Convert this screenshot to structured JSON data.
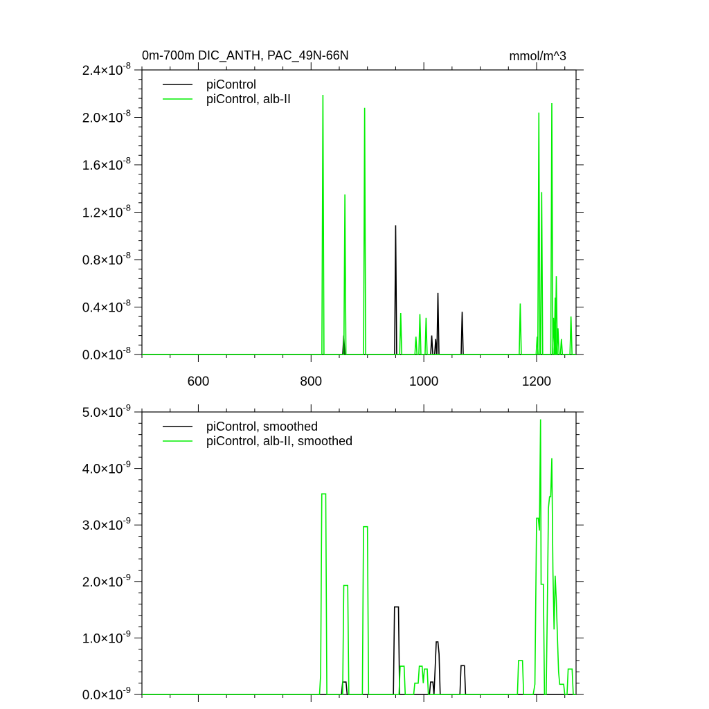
{
  "colors": {
    "control": "#000000",
    "alb": "#00ee00"
  },
  "chart_data": [
    {
      "type": "line",
      "title": "0m-700m DIC_ANTH, PAC_49N-66N",
      "units": "mmol/m^3",
      "xlim": [
        500,
        1270
      ],
      "ylim": [
        0,
        2.4e-08
      ],
      "x_ticks": [
        "600",
        "800",
        "1000",
        "1200"
      ],
      "y_ticks": [
        {
          "mant": "0.0",
          "exp": "-8"
        },
        {
          "mant": "0.4",
          "exp": "-8"
        },
        {
          "mant": "0.8",
          "exp": "-8"
        },
        {
          "mant": "1.2",
          "exp": "-8"
        },
        {
          "mant": "1.6",
          "exp": "-8"
        },
        {
          "mant": "2.0",
          "exp": "-8"
        },
        {
          "mant": "2.4",
          "exp": "-8"
        }
      ],
      "series": [
        {
          "name": "piControl",
          "color": "#000000",
          "style": "spikes",
          "points": [
            [
              858,
              1.6e-09
            ],
            [
              950,
              1.09e-08
            ],
            [
              1014,
              1.6e-09
            ],
            [
              1021,
              1.3e-09
            ],
            [
              1025,
              5.2e-09
            ],
            [
              1068,
              3.6e-09
            ]
          ]
        },
        {
          "name": "piControl, alb-II",
          "color": "#00ee00",
          "style": "spikes",
          "points": [
            [
              821,
              2.19e-08
            ],
            [
              860,
              1.35e-08
            ],
            [
              895,
              2.08e-08
            ],
            [
              959,
              3.5e-09
            ],
            [
              986,
              1.5e-09
            ],
            [
              993,
              3.4e-09
            ],
            [
              1004,
              3.1e-09
            ],
            [
              1171,
              4.3e-09
            ],
            [
              1201,
              1.5e-09
            ],
            [
              1204,
              2.04e-08
            ],
            [
              1209,
              1.37e-08
            ],
            [
              1227,
              2.12e-08
            ],
            [
              1230,
              3.1e-09
            ],
            [
              1233,
              4.8e-09
            ],
            [
              1235,
              6.6e-09
            ],
            [
              1238,
              2.2e-09
            ],
            [
              1244,
              1.3e-09
            ],
            [
              1261,
              3.2e-09
            ]
          ]
        }
      ]
    },
    {
      "type": "line",
      "title": "",
      "xlim": [
        500,
        1270
      ],
      "ylim": [
        0,
        5e-09
      ],
      "x_ticks": [],
      "y_ticks": [
        {
          "mant": "0.0",
          "exp": "-9"
        },
        {
          "mant": "1.0",
          "exp": "-9"
        },
        {
          "mant": "2.0",
          "exp": "-9"
        },
        {
          "mant": "3.0",
          "exp": "-9"
        },
        {
          "mant": "4.0",
          "exp": "-9"
        },
        {
          "mant": "5.0",
          "exp": "-9"
        }
      ],
      "series": [
        {
          "name": "piControl, smoothed",
          "color": "#000000",
          "style": "step",
          "points": [
            [
              854,
              0
            ],
            [
              856,
              2.2e-10
            ],
            [
              862,
              2.2e-10
            ],
            [
              864,
              0
            ],
            [
              946,
              0
            ],
            [
              948,
              1.55e-09
            ],
            [
              955,
              1.55e-09
            ],
            [
              957,
              0
            ],
            [
              1010,
              0
            ],
            [
              1012,
              2.2e-10
            ],
            [
              1016,
              2.2e-10
            ],
            [
              1018,
              0
            ],
            [
              1020,
              4.5e-10
            ],
            [
              1022,
              9.3e-10
            ],
            [
              1025,
              9.3e-10
            ],
            [
              1027,
              7.2e-10
            ],
            [
              1029,
              0
            ],
            [
              1064,
              0
            ],
            [
              1066,
              5.1e-10
            ],
            [
              1072,
              5.1e-10
            ],
            [
              1074,
              0
            ]
          ]
        },
        {
          "name": "piControl, alb-II, smoothed",
          "color": "#00ee00",
          "style": "step",
          "points": [
            [
              810,
              0
            ],
            [
              815,
              0
            ],
            [
              817,
              3.6e-10
            ],
            [
              819,
              3.55e-09
            ],
            [
              826,
              3.55e-09
            ],
            [
              828,
              0
            ],
            [
              856,
              0
            ],
            [
              858,
              1.93e-09
            ],
            [
              865,
              1.93e-09
            ],
            [
              867,
              0
            ],
            [
              891,
              0
            ],
            [
              893,
              2.97e-09
            ],
            [
              900,
              2.97e-09
            ],
            [
              902,
              0
            ],
            [
              956,
              0
            ],
            [
              958,
              5e-10
            ],
            [
              965,
              5e-10
            ],
            [
              967,
              0
            ],
            [
              982,
              0
            ],
            [
              984,
              2e-10
            ],
            [
              990,
              2e-10
            ],
            [
              992,
              5e-10
            ],
            [
              997,
              5e-10
            ],
            [
              999,
              2e-10
            ],
            [
              1001,
              4.5e-10
            ],
            [
              1006,
              4.5e-10
            ],
            [
              1008,
              0
            ],
            [
              1166,
              0
            ],
            [
              1168,
              6e-10
            ],
            [
              1175,
              6e-10
            ],
            [
              1177,
              0
            ],
            [
              1194,
              0
            ],
            [
              1197,
              1.8e-10
            ],
            [
              1200,
              3.12e-09
            ],
            [
              1203,
              3.12e-09
            ],
            [
              1205,
              2.9e-09
            ],
            [
              1207,
              4.87e-09
            ],
            [
              1208,
              1.95e-09
            ],
            [
              1212,
              1.95e-09
            ],
            [
              1214,
              0
            ],
            [
              1217,
              0
            ],
            [
              1219,
              1.5e-09
            ],
            [
              1221,
              3.3e-09
            ],
            [
              1223,
              3.5e-09
            ],
            [
              1225,
              3.5e-09
            ],
            [
              1227,
              4.18e-09
            ],
            [
              1229,
              2.17e-09
            ],
            [
              1231,
              1.15e-09
            ],
            [
              1233,
              2.1e-09
            ],
            [
              1235,
              1.65e-09
            ],
            [
              1237,
              1e-09
            ],
            [
              1239,
              4e-10
            ],
            [
              1241,
              1.8e-10
            ],
            [
              1248,
              1.8e-10
            ],
            [
              1250,
              0
            ],
            [
              1254,
              0
            ],
            [
              1256,
              4.5e-10
            ],
            [
              1263,
              4.5e-10
            ],
            [
              1265,
              0
            ],
            [
              1270,
              0
            ]
          ]
        }
      ]
    }
  ]
}
